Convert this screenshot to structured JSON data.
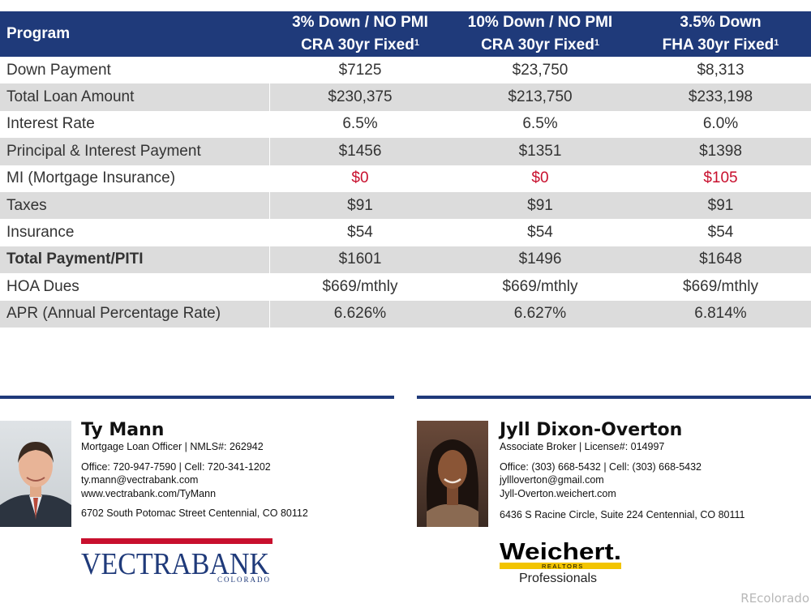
{
  "table": {
    "header": {
      "program_label": "Program",
      "columns": [
        {
          "line1": "3% Down / NO PMI",
          "line2": "CRA 30yr Fixed",
          "sup": "1"
        },
        {
          "line1": "10% Down / NO PMI",
          "line2": "CRA 30yr Fixed",
          "sup": "1"
        },
        {
          "line1": "3.5% Down",
          "line2": "FHA 30yr Fixed",
          "sup": "1"
        }
      ]
    },
    "rows": [
      {
        "label": "Down Payment",
        "values": [
          "$7125",
          "$23,750",
          "$8,313"
        ]
      },
      {
        "label": "Total Loan Amount",
        "values": [
          "$230,375",
          "$213,750",
          "$233,198"
        ]
      },
      {
        "label": "Interest Rate",
        "values": [
          "6.5%",
          "6.5%",
          "6.0%"
        ]
      },
      {
        "label": "Principal & Interest Payment",
        "values": [
          "$1456",
          "$1351",
          "$1398"
        ]
      },
      {
        "label": "MI (Mortgage Insurance)",
        "values": [
          "$0",
          "$0",
          "$105"
        ]
      },
      {
        "label": "Taxes",
        "values": [
          "$91",
          "$91",
          "$91"
        ]
      },
      {
        "label": "Insurance",
        "values": [
          "$54",
          "$54",
          "$54"
        ]
      },
      {
        "label": "Total Payment/PITI",
        "values": [
          "$1601",
          "$1496",
          "$1648"
        ]
      },
      {
        "label": "HOA Dues",
        "values": [
          "$669/mthly",
          "$669/mthly",
          "$669/mthly"
        ]
      },
      {
        "label": "APR (Annual Percentage Rate)",
        "values": [
          "6.626%",
          "6.627%",
          "6.814%"
        ]
      }
    ]
  },
  "contacts": [
    {
      "name": "Ty Mann",
      "title": "Mortgage Loan Officer | NMLS#: 262942",
      "phones": "Office: 720-947-7590 | Cell: 720-341-1202",
      "email": "ty.mann@vectrabank.com",
      "web": "www.vectrabank.com/TyMann",
      "address": "6702 South Potomac Street Centennial, CO 80112"
    },
    {
      "name": "Jyll Dixon-Overton",
      "title": "Associate Broker | License#: 014997",
      "phones": "Office: (303) 668-5432 | Cell: (303) 668-5432",
      "email": "jyllloverton@gmail.com",
      "web": "Jyll-Overton.weichert.com",
      "address": "6436 S Racine Circle, Suite 224 Centennial, CO 80111"
    }
  ],
  "logos": {
    "vectra": {
      "word": "VECTRABANK",
      "sub": "COLORADO"
    },
    "weichert": {
      "word": "Weichert.",
      "sub": "REALTORS",
      "tag": "Professionals"
    }
  },
  "watermark": "REcolorado",
  "colors": {
    "header_blue": "#1f3a7a",
    "row_gray": "#dcdcdc",
    "mi_red": "#c8102e",
    "vectra_red": "#c8102e",
    "vectra_blue": "#1f3a7a"
  }
}
